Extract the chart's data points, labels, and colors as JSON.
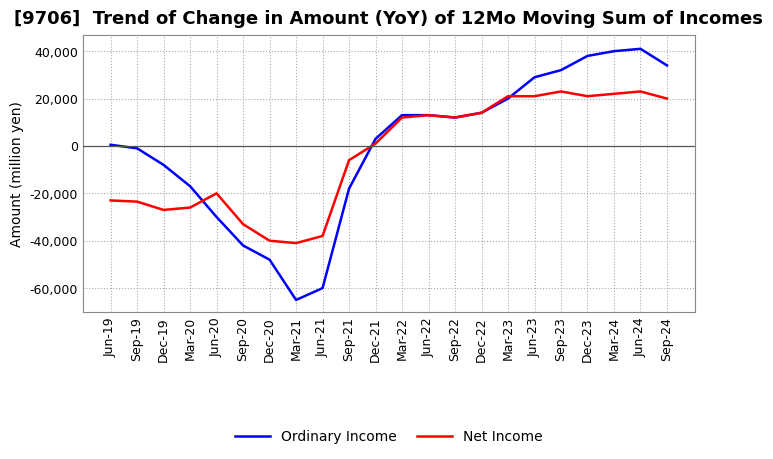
{
  "title": "[9706]  Trend of Change in Amount (YoY) of 12Mo Moving Sum of Incomes",
  "ylabel": "Amount (million yen)",
  "x_labels": [
    "Jun-19",
    "Sep-19",
    "Dec-19",
    "Mar-20",
    "Jun-20",
    "Sep-20",
    "Dec-20",
    "Mar-21",
    "Jun-21",
    "Sep-21",
    "Dec-21",
    "Mar-22",
    "Jun-22",
    "Sep-22",
    "Dec-22",
    "Mar-23",
    "Jun-23",
    "Sep-23",
    "Dec-23",
    "Mar-24",
    "Jun-24",
    "Sep-24"
  ],
  "ordinary_income": [
    500,
    -1000,
    -8000,
    -17000,
    -30000,
    -42000,
    -48000,
    -65000,
    -60000,
    -18000,
    3000,
    13000,
    13000,
    12000,
    14000,
    20000,
    29000,
    32000,
    38000,
    40000,
    41000,
    34000
  ],
  "net_income": [
    -23000,
    -23500,
    -27000,
    -26000,
    -20000,
    -33000,
    -40000,
    -41000,
    -38000,
    -6000,
    1000,
    12000,
    13000,
    12000,
    14000,
    21000,
    21000,
    23000,
    21000,
    22000,
    23000,
    20000
  ],
  "ordinary_color": "#0000ff",
  "net_color": "#ff0000",
  "ylim": [
    -70000,
    47000
  ],
  "yticks": [
    -60000,
    -40000,
    -20000,
    0,
    20000,
    40000
  ],
  "grid_color": "#aaaaaa",
  "background_color": "#ffffff",
  "title_fontsize": 13,
  "label_fontsize": 10,
  "tick_fontsize": 9
}
